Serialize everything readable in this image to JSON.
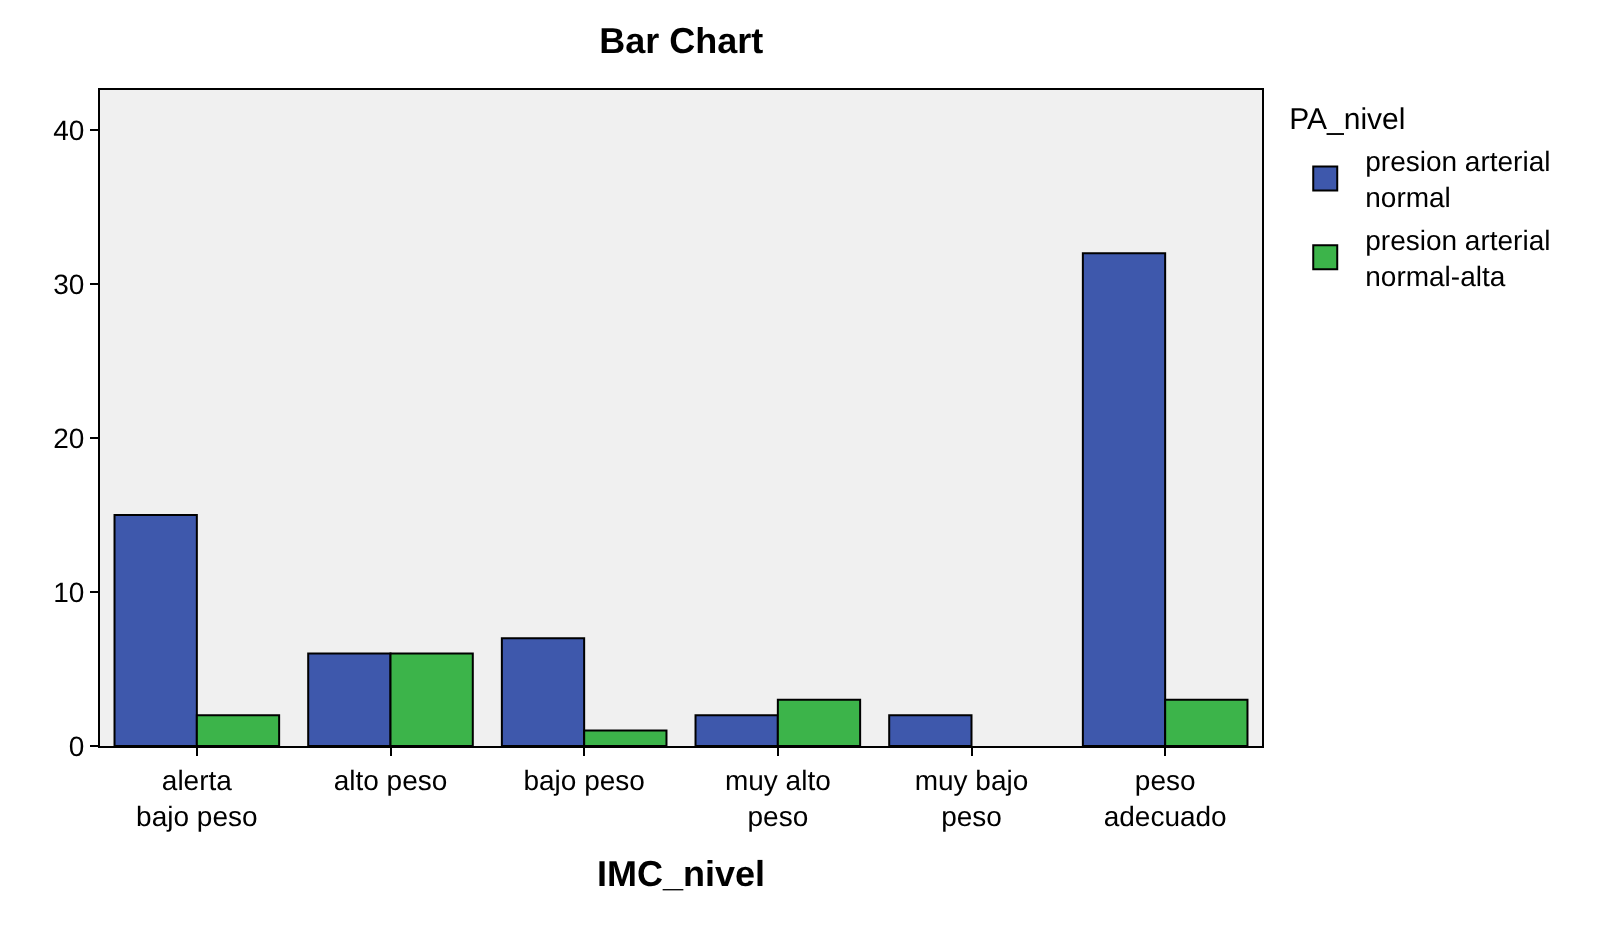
{
  "chart_data": {
    "type": "bar",
    "title": "Bar Chart",
    "xlabel": "IMC_nivel",
    "legend_title": "PA_nivel",
    "categories": [
      "alerta\nbajo peso",
      "alto peso",
      "bajo peso",
      "muy alto\npeso",
      "muy bajo\npeso",
      "peso\nadecuado"
    ],
    "series": [
      {
        "name": "presion arterial\nnormal",
        "color": "#3e58ac",
        "values": [
          15,
          6,
          7,
          2,
          2,
          32
        ]
      },
      {
        "name": "presion arterial\nnormal-alta",
        "color": "#3cb44a",
        "values": [
          2,
          6,
          1,
          3,
          null,
          3
        ]
      }
    ],
    "ylim": [
      0,
      42.6
    ],
    "yticks": [
      0,
      10,
      20,
      30,
      40
    ],
    "grid": false,
    "legend": "top right"
  }
}
